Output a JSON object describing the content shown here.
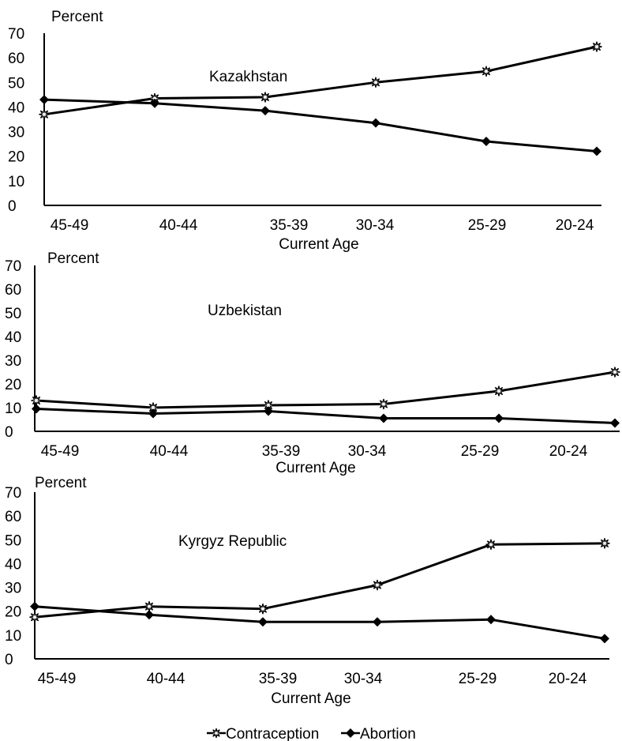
{
  "chart_data": [
    {
      "type": "line",
      "title": "Kazakhstan",
      "ylabel": "Percent",
      "xlabel": "Current Age",
      "categories": [
        "45-49",
        "40-44",
        "35-39",
        "30-34",
        "25-29",
        "20-24"
      ],
      "yticks": [
        "0",
        "10",
        "20",
        "30",
        "40",
        "50",
        "60",
        "70"
      ],
      "ylim": [
        0,
        70
      ],
      "series": [
        {
          "name": "Contraception",
          "values": [
            37,
            43.5,
            44,
            50,
            54.5,
            64.5
          ]
        },
        {
          "name": "Abortion",
          "values": [
            43,
            41.5,
            38.5,
            33.5,
            26,
            22
          ]
        }
      ]
    },
    {
      "type": "line",
      "title": "Uzbekistan",
      "ylabel": "Percent",
      "xlabel": "Current Age",
      "categories": [
        "45-49",
        "40-44",
        "35-39",
        "30-34",
        "25-29",
        "20-24"
      ],
      "yticks": [
        "0",
        "10",
        "20",
        "30",
        "40",
        "50",
        "60",
        "70"
      ],
      "ylim": [
        0,
        70
      ],
      "series": [
        {
          "name": "Contraception",
          "values": [
            13,
            10,
            11,
            11.5,
            17,
            25
          ]
        },
        {
          "name": "Abortion",
          "values": [
            9.5,
            7.5,
            8.5,
            5.5,
            5.5,
            3.5
          ]
        }
      ]
    },
    {
      "type": "line",
      "title": "Kyrgyz Republic",
      "ylabel": "Percent",
      "xlabel": "Current Age",
      "categories": [
        "45-49",
        "40-44",
        "35-39",
        "30-34",
        "25-29",
        "20-24"
      ],
      "yticks": [
        "0",
        "10",
        "20",
        "30",
        "40",
        "50",
        "60",
        "70"
      ],
      "ylim": [
        0,
        70
      ],
      "series": [
        {
          "name": "Contraception",
          "values": [
            17.5,
            22,
            21,
            31,
            48,
            48.5
          ]
        },
        {
          "name": "Abortion",
          "values": [
            22,
            18.5,
            15.5,
            15.5,
            16.5,
            8.5
          ]
        }
      ]
    }
  ],
  "legend": {
    "contraception_label": "Contraception",
    "abortion_label": "Abortion"
  }
}
